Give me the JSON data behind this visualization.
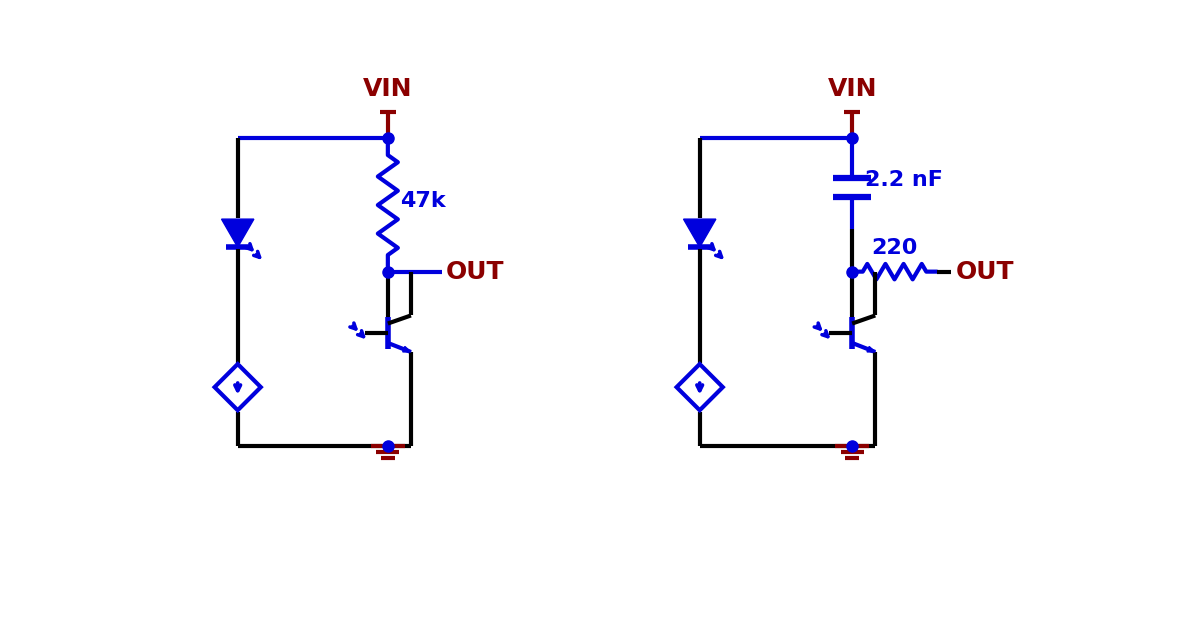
{
  "bg_color": "#ffffff",
  "blue": "#0000dd",
  "dark_red": "#8b0000",
  "black": "#000000",
  "line_width": 3.0,
  "dot_size": 8,
  "fig_width": 12.0,
  "fig_height": 6.21,
  "circuit1": {
    "vin_label": "VIN",
    "resistor_label": "47k",
    "out_label": "OUT"
  },
  "circuit2": {
    "vin_label": "VIN",
    "cap_label": "2.2 nF",
    "resistor_label": "220",
    "out_label": "OUT"
  }
}
